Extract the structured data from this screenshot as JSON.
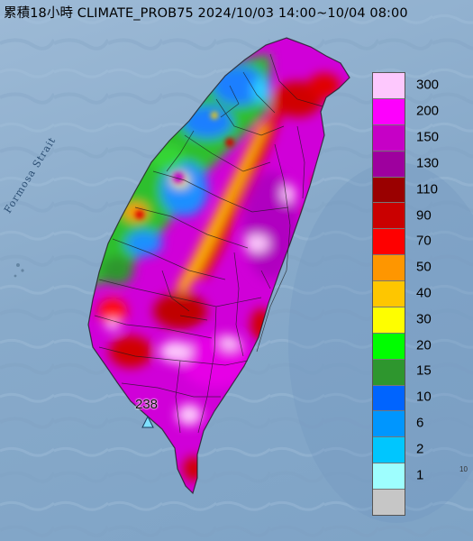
{
  "title": "累積18小時 CLIMATE_PROB75 2024/10/03 14:00~10/04 08:00",
  "strait_label": "Formosa Strait",
  "legend": {
    "items": [
      {
        "label": "300",
        "color": "#fdc8fd"
      },
      {
        "label": "200",
        "color": "#fd00fd"
      },
      {
        "label": "150",
        "color": "#c600c6"
      },
      {
        "label": "130",
        "color": "#9e009e"
      },
      {
        "label": "110",
        "color": "#9a0000"
      },
      {
        "label": "90",
        "color": "#ca0000"
      },
      {
        "label": "70",
        "color": "#fe0000"
      },
      {
        "label": "50",
        "color": "#fe9600"
      },
      {
        "label": "40",
        "color": "#fec600"
      },
      {
        "label": "30",
        "color": "#fefe00"
      },
      {
        "label": "20",
        "color": "#00fe00"
      },
      {
        "label": "15",
        "color": "#2e962e"
      },
      {
        "label": "10",
        "color": "#0064fe"
      },
      {
        "label": "6",
        "color": "#0096fe"
      },
      {
        "label": "2",
        "color": "#00c6fe"
      },
      {
        "label": "1",
        "color": "#9efefe"
      },
      {
        "label": "",
        "color": "#c6c6c6"
      }
    ]
  },
  "station": {
    "label": "238"
  },
  "edge_mark": "10"
}
